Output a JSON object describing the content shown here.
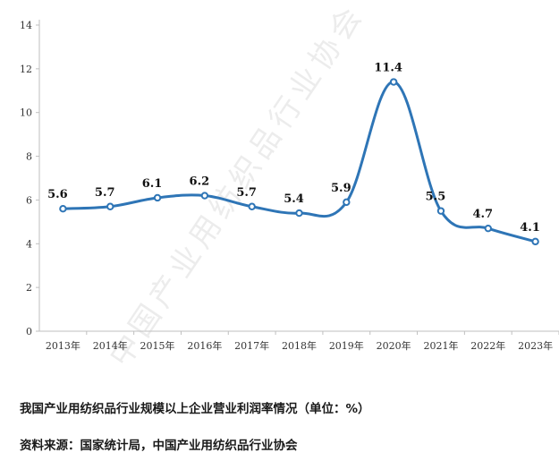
{
  "caption": {
    "title": "我国产业用纺织品行业规模以上企业营业利润率情况（单位：%）",
    "source": "资料来源：国家统计局，中国产业用纺织品行业协会"
  },
  "watermark": "中国产业用纺织品行业协会",
  "colors": {
    "line": "#2e75b6",
    "marker_fill": "#ffffff",
    "axis": "#bfbfbf"
  },
  "chart_data": {
    "type": "line",
    "categories": [
      "2013年",
      "2014年",
      "2015年",
      "2016年",
      "2017年",
      "2018年",
      "2019年",
      "2020年",
      "2021年",
      "2022年",
      "2023年"
    ],
    "series": [
      {
        "values": [
          5.6,
          5.7,
          6.1,
          6.2,
          5.7,
          5.4,
          5.9,
          11.4,
          5.5,
          4.7,
          4.1
        ]
      }
    ],
    "data_labels": [
      "5.6",
      "5.7",
      "6.1",
      "6.2",
      "5.7",
      "5.4",
      "5.9",
      "11.4",
      "5.5",
      "4.7",
      "4.1"
    ],
    "ylim": [
      0,
      14
    ],
    "yticks": [
      "0",
      "2",
      "4",
      "6",
      "8",
      "10",
      "12",
      "14"
    ],
    "grid": false,
    "smooth": true
  }
}
